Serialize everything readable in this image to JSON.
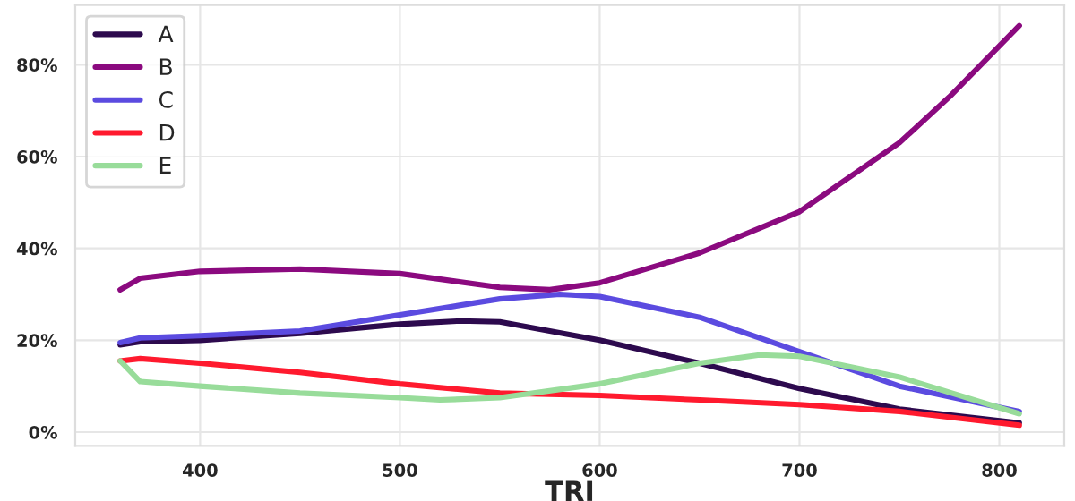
{
  "chart_data": {
    "type": "line",
    "xlabel": "TRI",
    "xlim": [
      337.5,
      832.5
    ],
    "xticks": [
      400,
      500,
      600,
      700,
      800
    ],
    "ylim": [
      -3,
      93
    ],
    "yticks": [
      {
        "value": 0,
        "label": "0%"
      },
      {
        "value": 20,
        "label": "20%"
      },
      {
        "value": 40,
        "label": "40%"
      },
      {
        "value": 60,
        "label": "60%"
      },
      {
        "value": 80,
        "label": "80%"
      }
    ],
    "grid": true,
    "legend": "top left",
    "marker": "none",
    "line_style": "solid",
    "series": [
      {
        "name": "A",
        "color": "#2d0a4e",
        "x": [
          360,
          370,
          400,
          450,
          500,
          530,
          550,
          600,
          650,
          700,
          750,
          810
        ],
        "values": [
          19,
          19.7,
          20,
          21.5,
          23.5,
          24.2,
          24,
          20,
          15,
          9.5,
          5,
          2
        ]
      },
      {
        "name": "B",
        "color": "#8b0a7f",
        "x": [
          360,
          370,
          400,
          450,
          500,
          550,
          575,
          600,
          650,
          700,
          750,
          775,
          810
        ],
        "values": [
          31,
          33.5,
          35,
          35.5,
          34.5,
          31.5,
          31,
          32.5,
          39,
          48,
          63,
          73,
          88.5
        ]
      },
      {
        "name": "C",
        "color": "#5b4be0",
        "x": [
          360,
          370,
          400,
          450,
          500,
          550,
          580,
          600,
          650,
          700,
          750,
          810
        ],
        "values": [
          19.5,
          20.5,
          21,
          22,
          25.5,
          29,
          30,
          29.5,
          25,
          17.5,
          10,
          4.5
        ]
      },
      {
        "name": "D",
        "color": "#ff1a2e",
        "x": [
          360,
          370,
          400,
          450,
          500,
          550,
          600,
          650,
          700,
          750,
          810
        ],
        "values": [
          15.5,
          16,
          15,
          13,
          10.5,
          8.5,
          8,
          7,
          6,
          4.5,
          1.5
        ]
      },
      {
        "name": "E",
        "color": "#98dc9a",
        "x": [
          360,
          370,
          400,
          450,
          500,
          520,
          550,
          600,
          650,
          680,
          700,
          750,
          810
        ],
        "values": [
          15.5,
          11,
          10,
          8.5,
          7.5,
          7,
          7.5,
          10.5,
          15,
          16.8,
          16.5,
          12,
          4
        ]
      }
    ]
  }
}
